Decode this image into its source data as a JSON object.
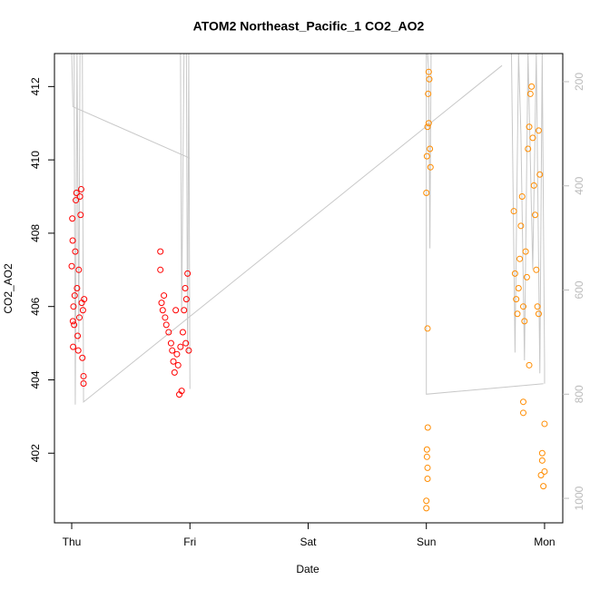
{
  "chart_data": {
    "type": "scatter",
    "title": "ATOM2 Northeast_Pacific_1 CO2_AO2",
    "xlabel": "Date",
    "ylabel": "CO2_AO2",
    "xlim": [
      -0.146,
      4.154
    ],
    "xticks": [
      {
        "value": 0,
        "label": "Thu"
      },
      {
        "value": 1,
        "label": "Fri"
      },
      {
        "value": 2,
        "label": "Sat"
      },
      {
        "value": 3,
        "label": "Sun"
      },
      {
        "value": 4,
        "label": "Mon"
      }
    ],
    "ylim": [
      400.1,
      412.9
    ],
    "yticks": [
      402,
      404,
      406,
      408,
      410,
      412
    ],
    "y2lim": [
      1047,
      146
    ],
    "y2ticks": [
      200,
      400,
      600,
      800,
      1000
    ],
    "series": [
      {
        "type": "line",
        "axis": "y2",
        "color": "#c8c8c8",
        "x": [
          0.0,
          0.01,
          1.0,
          null,
          0.02,
          0.03,
          0.045,
          0.06,
          0.07,
          0.09,
          0.1,
          3.64,
          null,
          0.92,
          0.93,
          0.95,
          0.97,
          0.98,
          0.99,
          1.0,
          null,
          3.0,
          3.0,
          3.99,
          null,
          3.01,
          3.02,
          3.03,
          3.04,
          3.05,
          null,
          3.72,
          3.75,
          3.78,
          3.8,
          3.83,
          3.86,
          3.9,
          3.93,
          3.96,
          3.98,
          4.0,
          4.0
        ],
        "values": [
          146,
          248,
          347,
          null,
          146,
          820,
          146,
          700,
          146,
          146,
          815,
          169,
          null,
          146,
          640,
          146,
          146,
          720,
          146,
          790,
          null,
          146,
          800,
          780,
          null,
          146,
          180,
          520,
          146,
          146,
          null,
          146,
          720,
          146,
          300,
          735,
          146,
          560,
          146,
          760,
          146,
          740,
          780
        ]
      },
      {
        "color": "#ff0000",
        "x": [
          0.0,
          0.005,
          0.008,
          0.01,
          0.012,
          0.015,
          0.02,
          0.025,
          0.03,
          0.035,
          0.04,
          0.045,
          0.05,
          0.055,
          0.06,
          0.065,
          0.07,
          0.075,
          0.08,
          0.085,
          0.09,
          0.095,
          0.1,
          0.1,
          0.105,
          0.75,
          0.75,
          0.76,
          0.77,
          0.78,
          0.79,
          0.8,
          0.82,
          0.84,
          0.85,
          0.86,
          0.87,
          0.88,
          0.89,
          0.9,
          0.91,
          0.92,
          0.93,
          0.94,
          0.95,
          0.96,
          0.97,
          0.98,
          0.99,
          0.965
        ],
        "values": [
          407.1,
          408.4,
          407.8,
          405.6,
          404.9,
          406.0,
          405.5,
          406.3,
          407.5,
          408.9,
          409.1,
          406.5,
          405.2,
          404.8,
          407.0,
          405.7,
          409.0,
          408.5,
          409.2,
          406.1,
          404.6,
          405.9,
          404.1,
          403.9,
          406.2,
          407.5,
          407.0,
          406.1,
          405.9,
          406.3,
          405.7,
          405.5,
          405.3,
          405.0,
          404.8,
          404.5,
          404.2,
          405.9,
          404.7,
          404.4,
          403.6,
          404.9,
          403.7,
          405.3,
          405.9,
          406.5,
          406.2,
          406.9,
          404.8,
          405.0
        ]
      },
      {
        "color": "#ff8c00",
        "x": [
          3.0,
          3.0,
          3.005,
          3.005,
          3.01,
          3.01,
          3.012,
          3.01,
          3.0,
          3.005,
          3.01,
          3.015,
          3.02,
          3.025,
          3.02,
          3.03,
          3.035,
          3.74,
          3.75,
          3.76,
          3.77,
          3.78,
          3.79,
          3.8,
          3.81,
          3.82,
          3.83,
          3.84,
          3.85,
          3.86,
          3.87,
          3.88,
          3.89,
          3.9,
          3.91,
          3.92,
          3.93,
          3.94,
          3.95,
          3.95,
          3.96,
          3.97,
          3.98,
          3.98,
          3.99,
          4.0,
          4.0,
          3.82,
          3.82,
          3.87
        ],
        "values": [
          400.5,
          400.7,
          401.9,
          402.1,
          401.6,
          401.3,
          402.7,
          405.4,
          409.1,
          410.1,
          410.9,
          411.8,
          412.4,
          412.2,
          411.0,
          410.3,
          409.8,
          408.6,
          406.9,
          406.2,
          405.8,
          406.5,
          407.3,
          408.2,
          409.0,
          406.0,
          405.6,
          407.5,
          406.8,
          410.3,
          410.9,
          411.8,
          412.0,
          410.6,
          409.3,
          408.5,
          407.0,
          406.0,
          405.8,
          410.8,
          409.6,
          401.4,
          402.0,
          401.8,
          401.1,
          402.8,
          401.5,
          403.4,
          403.1,
          404.4
        ]
      }
    ]
  }
}
